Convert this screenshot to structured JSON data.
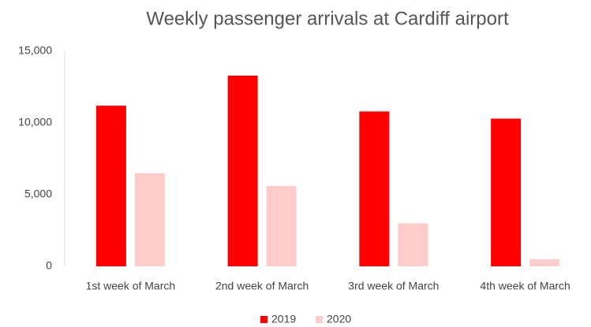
{
  "chart_data": {
    "type": "bar",
    "title": "Weekly passenger arrivals at Cardiff airport",
    "categories": [
      "1st week of March",
      "2nd week of March",
      "3rd week of March",
      "4th week of March"
    ],
    "series": [
      {
        "name": "2019",
        "color": "#ff0000",
        "values": [
          11200,
          13300,
          10800,
          10300
        ]
      },
      {
        "name": "2020",
        "color": "#ffcccc",
        "values": [
          6500,
          5600,
          3000,
          500
        ]
      }
    ],
    "ylim": [
      0,
      15000
    ],
    "yticks": [
      0,
      {
        "value": 5000,
        "label": "5,000"
      },
      {
        "value": 10000,
        "label": "10,000"
      },
      {
        "value": 15000,
        "label": "15,000"
      }
    ],
    "grid": false,
    "legend": "bottom"
  }
}
